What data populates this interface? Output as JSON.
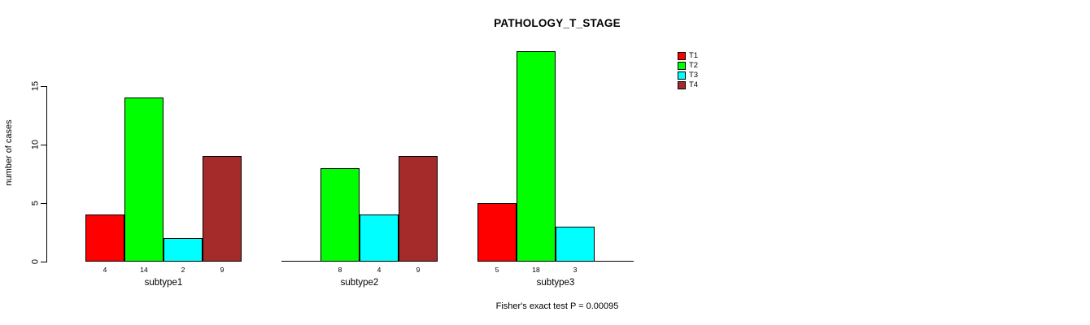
{
  "chart_data": {
    "type": "bar",
    "title": "PATHOLOGY_T_STAGE",
    "ylabel": "number of cases",
    "xlabel": "",
    "categories": [
      "subtype1",
      "subtype2",
      "subtype3"
    ],
    "series": [
      {
        "name": "T1",
        "color": "#FF0000",
        "values": [
          4,
          0,
          5
        ]
      },
      {
        "name": "T2",
        "color": "#00FF00",
        "values": [
          14,
          8,
          18
        ]
      },
      {
        "name": "T3",
        "color": "#00FFFF",
        "values": [
          2,
          4,
          3
        ]
      },
      {
        "name": "T4",
        "color": "#A52A2A",
        "values": [
          9,
          9,
          0
        ]
      }
    ],
    "visible_bar_value_labels": {
      "subtype1": [
        "4",
        "14",
        "2",
        "9"
      ],
      "subtype2": [
        "8",
        "4",
        "9"
      ],
      "subtype3": [
        "5",
        "18",
        "3"
      ]
    },
    "ylim": [
      0,
      18
    ],
    "yticks": [
      0,
      5,
      10,
      15
    ],
    "grid": false,
    "legend_position": "right",
    "legend_entries": [
      "T1",
      "T2",
      "T3",
      "T4"
    ],
    "annotation": "Fisher's exact test P = 0.00095",
    "axis_color": "#000000",
    "background_color": "#FFFFFF"
  }
}
